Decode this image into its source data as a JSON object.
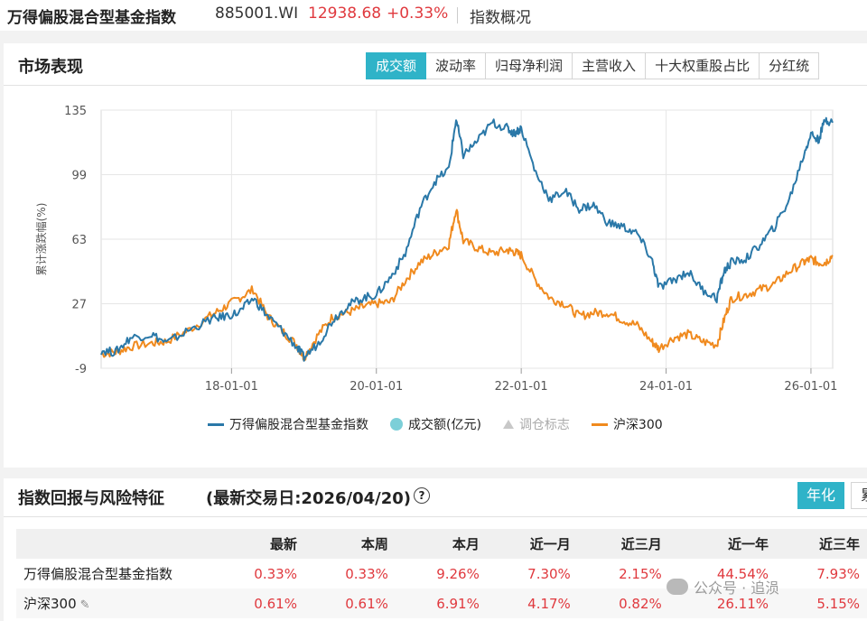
{
  "header": {
    "name": "万得偏股混合型基金指数",
    "code": "885001.WI",
    "price": "12938.68",
    "change": "+0.33%",
    "link": "指数概况"
  },
  "market": {
    "title": "市场表现",
    "tabs": [
      "成交额",
      "波动率",
      "归母净利润",
      "主营收入",
      "十大权重股占比",
      "分红统"
    ],
    "active_tab": 0
  },
  "legend": {
    "index_name": "万得偏股混合型基金指数",
    "volume": "成交额(亿元)",
    "rebalance": "调仓标志",
    "hs300": "沪深300"
  },
  "chart_data": {
    "type": "line",
    "ylabel": "累计涨跌幅(%)",
    "ylim": [
      -9,
      135
    ],
    "yticks": [
      135,
      99,
      63,
      27,
      -9
    ],
    "xlim": [
      2016.2,
      2026.3
    ],
    "xticks": [
      {
        "x": 2018.0,
        "label": "18-01-01"
      },
      {
        "x": 2020.0,
        "label": "20-01-01"
      },
      {
        "x": 2022.0,
        "label": "22-01-01"
      },
      {
        "x": 2024.0,
        "label": "24-01-01"
      },
      {
        "x": 2026.0,
        "label": "26-01-01"
      }
    ],
    "grid": true,
    "legend_position": "bottom",
    "series": [
      {
        "name": "万得偏股混合型基金指数",
        "color": "#2a78a8",
        "x": [
          2016.2,
          2016.4,
          2016.6,
          2016.9,
          2017.1,
          2017.4,
          2017.7,
          2017.9,
          2018.1,
          2018.3,
          2018.5,
          2018.7,
          2018.9,
          2019.0,
          2019.2,
          2019.4,
          2019.6,
          2019.8,
          2020.0,
          2020.2,
          2020.4,
          2020.6,
          2020.8,
          2021.0,
          2021.1,
          2021.2,
          2021.4,
          2021.6,
          2021.8,
          2021.9,
          2022.0,
          2022.2,
          2022.4,
          2022.6,
          2022.8,
          2023.0,
          2023.2,
          2023.4,
          2023.6,
          2023.8,
          2023.9,
          2024.1,
          2024.3,
          2024.5,
          2024.7,
          2024.8,
          2024.9,
          2025.1,
          2025.3,
          2025.5,
          2025.7,
          2025.9,
          2026.0,
          2026.1,
          2026.2,
          2026.3
        ],
        "y": [
          1,
          0,
          8,
          10,
          5,
          12,
          18,
          20,
          22,
          30,
          20,
          12,
          3,
          -3,
          5,
          18,
          26,
          30,
          32,
          42,
          55,
          80,
          95,
          102,
          130,
          110,
          118,
          128,
          125,
          122,
          125,
          100,
          85,
          90,
          80,
          82,
          72,
          70,
          66,
          52,
          36,
          40,
          45,
          35,
          30,
          45,
          50,
          52,
          60,
          70,
          85,
          110,
          122,
          118,
          130,
          128
        ]
      },
      {
        "name": "沪深300",
        "color": "#f08a1e",
        "x": [
          2016.2,
          2016.4,
          2016.6,
          2016.9,
          2017.1,
          2017.4,
          2017.7,
          2017.9,
          2018.1,
          2018.3,
          2018.5,
          2018.7,
          2018.9,
          2019.0,
          2019.2,
          2019.4,
          2019.6,
          2019.8,
          2020.0,
          2020.2,
          2020.4,
          2020.6,
          2020.8,
          2021.0,
          2021.1,
          2021.2,
          2021.4,
          2021.6,
          2021.8,
          2021.9,
          2022.0,
          2022.2,
          2022.4,
          2022.6,
          2022.8,
          2023.0,
          2023.2,
          2023.4,
          2023.6,
          2023.8,
          2023.9,
          2024.1,
          2024.3,
          2024.5,
          2024.7,
          2024.8,
          2024.9,
          2025.1,
          2025.3,
          2025.5,
          2025.7,
          2025.9,
          2026.0,
          2026.1,
          2026.2,
          2026.3
        ],
        "y": [
          -1,
          0,
          3,
          5,
          6,
          12,
          20,
          25,
          30,
          35,
          20,
          12,
          4,
          -3,
          10,
          20,
          22,
          25,
          27,
          28,
          40,
          50,
          55,
          60,
          80,
          62,
          58,
          55,
          57,
          56,
          54,
          40,
          30,
          27,
          20,
          22,
          22,
          18,
          15,
          6,
          2,
          8,
          10,
          6,
          4,
          18,
          30,
          32,
          35,
          38,
          45,
          50,
          52,
          50,
          50,
          54
        ]
      }
    ]
  },
  "returns": {
    "title": "指数回报与风险特征",
    "date": "(最新交易日:2026/04/20)",
    "help": "?",
    "tab_on": "年化",
    "tab_off": "累",
    "columns": [
      "",
      "最新",
      "本周",
      "本月",
      "近一月",
      "近三月",
      "近一年",
      "近三年"
    ],
    "rows": [
      {
        "name": "万得偏股混合型基金指数",
        "values": [
          "0.33%",
          "0.33%",
          "9.26%",
          "7.30%",
          "2.15%",
          "44.54%",
          "7.93%"
        ]
      },
      {
        "name": "沪深300",
        "values": [
          "0.61%",
          "0.61%",
          "6.91%",
          "4.17%",
          "0.82%",
          "26.11%",
          "5.15%"
        ]
      }
    ]
  },
  "watermark": "公众号 · 追涢"
}
